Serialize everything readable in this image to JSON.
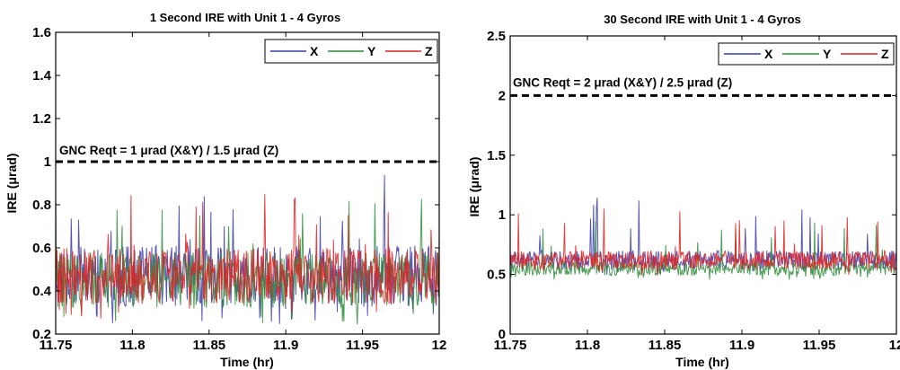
{
  "chart_data": [
    {
      "type": "line",
      "title": "1 Second IRE with Unit 1 - 4 Gyros",
      "xlabel": "Time (hr)",
      "ylabel": "IRE (μrad)",
      "xlim": [
        11.75,
        12
      ],
      "ylim": [
        0.2,
        1.6
      ],
      "xticks": [
        11.75,
        11.8,
        11.85,
        11.9,
        11.95,
        12
      ],
      "xtick_labels": [
        "11.75",
        "11.8",
        "11.85",
        "11.9",
        "11.95",
        "12"
      ],
      "yticks": [
        0.2,
        0.4,
        0.6,
        0.8,
        1,
        1.2,
        1.4,
        1.6
      ],
      "ytick_labels": [
        "0.2",
        "0.4",
        "0.6",
        "0.8",
        "1",
        "1.2",
        "1.4",
        "1.6"
      ],
      "grid": false,
      "legend_position": "top-right",
      "requirement": {
        "value": 1.0,
        "label": "GNC Reqt = 1 μrad (X&Y) / 1.5 μrad (Z)",
        "style": "dashed"
      },
      "series": [
        {
          "name": "X",
          "color": "#3a3aa8",
          "mean": 0.47,
          "spread": 0.14,
          "peak": 0.95
        },
        {
          "name": "Y",
          "color": "#2e8b3a",
          "mean": 0.45,
          "spread": 0.13,
          "peak": 0.85
        },
        {
          "name": "Z",
          "color": "#e02020",
          "mean": 0.47,
          "spread": 0.13,
          "peak": 0.9
        }
      ]
    },
    {
      "type": "line",
      "title": "30 Second IRE with Unit 1 - 4 Gyros",
      "xlabel": "Time (hr)",
      "ylabel": "IRE (μrad)",
      "xlim": [
        11.75,
        12
      ],
      "ylim": [
        0,
        2.5
      ],
      "xticks": [
        11.75,
        11.8,
        11.85,
        11.9,
        11.95,
        12
      ],
      "xtick_labels": [
        "11.75",
        "11.8",
        "11.85",
        "11.9",
        "11.95",
        "12"
      ],
      "yticks": [
        0,
        0.5,
        1,
        1.5,
        2,
        2.5
      ],
      "ytick_labels": [
        "0",
        "0.5",
        "1",
        "1.5",
        "2",
        "2.5"
      ],
      "grid": false,
      "legend_position": "top-right",
      "requirement": {
        "value": 2.0,
        "label": "GNC Reqt = 2 μrad (X&Y) / 2.5 μrad (Z)",
        "style": "dashed"
      },
      "series": [
        {
          "name": "X",
          "color": "#3a3aa8",
          "mean": 0.62,
          "spread": 0.08,
          "peak": 1.15
        },
        {
          "name": "Y",
          "color": "#2e8b3a",
          "mean": 0.55,
          "spread": 0.06,
          "peak": 0.95
        },
        {
          "name": "Z",
          "color": "#e02020",
          "mean": 0.62,
          "spread": 0.08,
          "peak": 1.1
        }
      ]
    }
  ]
}
